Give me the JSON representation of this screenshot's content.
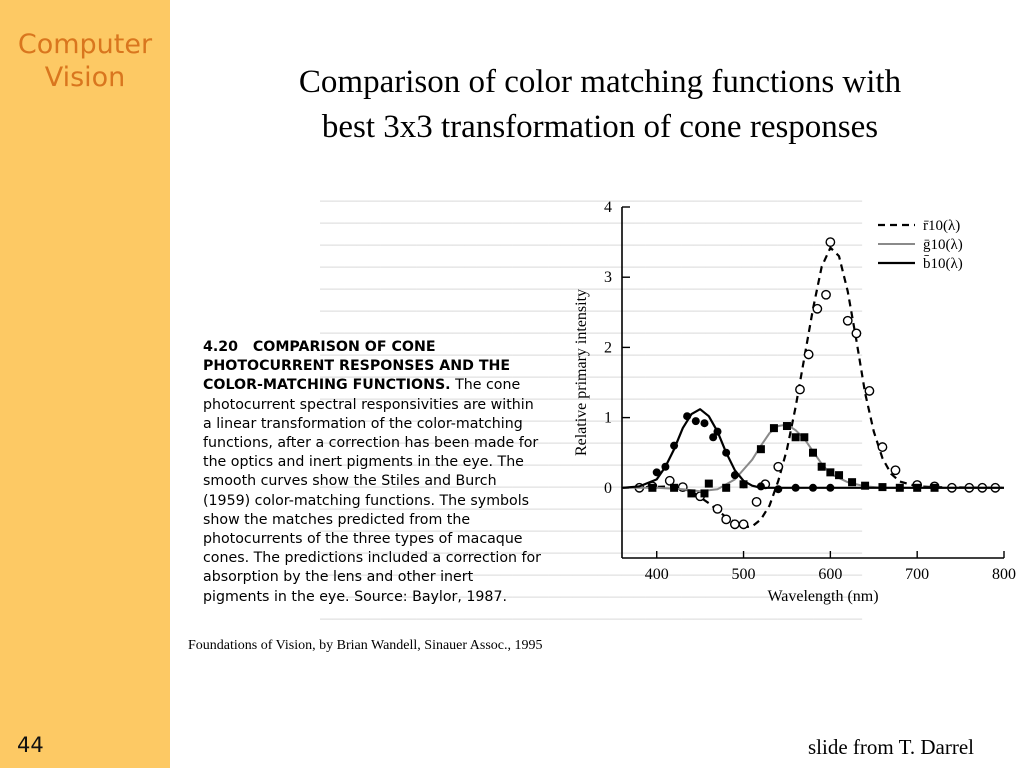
{
  "sidebar": {
    "title_line1": "Computer",
    "title_line2": "Vision",
    "slide_number": "44"
  },
  "slide": {
    "title_line1": "Comparison of color matching functions with",
    "title_line2": "best 3x3 transformation of cone responses",
    "credit": "Foundations of Vision, by Brian Wandell, Sinauer Assoc., 1995",
    "source": "slide from T. Darrel"
  },
  "caption": {
    "number": "4.20",
    "heading": "COMPARISON OF CONE PHOTOCURRENT RESPONSES AND THE COLOR-MATCHING FUNCTIONS.",
    "body": "The cone photocurrent spectral responsivities are within a linear transformation of the color-matching functions, after a correction has been made for the optics and inert pigments in the eye. The smooth curves show the Stiles and Burch (1959) color-matching functions. The symbols show the matches predicted from the photocurrents of the three types of macaque cones. The predictions included a correction for absorption by the lens and other inert pigments in the eye. Source: Baylor, 1987."
  },
  "colors": {
    "sidebar": "#fdc964",
    "sidebar_title": "#d9761e"
  },
  "chart_data": {
    "type": "line",
    "xlabel": "Wavelength (nm)",
    "ylabel": "Relative primary intensity",
    "xlim": [
      360,
      800
    ],
    "ylim": [
      -1,
      4
    ],
    "x_ticks": [
      "400",
      "500",
      "600",
      "700",
      "800"
    ],
    "y_ticks": [
      "0",
      "1",
      "2",
      "3",
      "4"
    ],
    "legend_position": "top-right",
    "series": [
      {
        "name": "r̄10(λ)",
        "style": "dashed",
        "marker": "open-circle",
        "curve": [
          [
            360,
            0
          ],
          [
            390,
            0.01
          ],
          [
            420,
            0.02
          ],
          [
            440,
            -0.05
          ],
          [
            460,
            -0.22
          ],
          [
            480,
            -0.42
          ],
          [
            500,
            -0.56
          ],
          [
            510,
            -0.55
          ],
          [
            520,
            -0.45
          ],
          [
            530,
            -0.25
          ],
          [
            540,
            0.1
          ],
          [
            550,
            0.55
          ],
          [
            560,
            1.15
          ],
          [
            570,
            1.85
          ],
          [
            580,
            2.55
          ],
          [
            590,
            3.15
          ],
          [
            600,
            3.42
          ],
          [
            610,
            3.3
          ],
          [
            620,
            2.8
          ],
          [
            630,
            2.1
          ],
          [
            640,
            1.35
          ],
          [
            650,
            0.8
          ],
          [
            660,
            0.42
          ],
          [
            670,
            0.2
          ],
          [
            680,
            0.09
          ],
          [
            700,
            0.02
          ],
          [
            720,
            0.01
          ],
          [
            800,
            0
          ]
        ],
        "points": [
          [
            380,
            0
          ],
          [
            395,
            0.02
          ],
          [
            415,
            0.1
          ],
          [
            430,
            0.01
          ],
          [
            450,
            -0.12
          ],
          [
            470,
            -0.3
          ],
          [
            480,
            -0.45
          ],
          [
            490,
            -0.52
          ],
          [
            500,
            -0.52
          ],
          [
            515,
            -0.2
          ],
          [
            525,
            0.05
          ],
          [
            540,
            0.3
          ],
          [
            565,
            1.4
          ],
          [
            575,
            1.9
          ],
          [
            585,
            2.55
          ],
          [
            595,
            2.75
          ],
          [
            600,
            3.5
          ],
          [
            620,
            2.38
          ],
          [
            630,
            2.2
          ],
          [
            645,
            1.38
          ],
          [
            660,
            0.58
          ],
          [
            675,
            0.25
          ],
          [
            700,
            0.04
          ],
          [
            720,
            0.02
          ],
          [
            740,
            0
          ],
          [
            760,
            0
          ],
          [
            775,
            0
          ],
          [
            790,
            0
          ]
        ]
      },
      {
        "name": "ḡ10(λ)",
        "style": "solid-gray",
        "marker": "filled-square",
        "curve": [
          [
            360,
            0
          ],
          [
            400,
            0
          ],
          [
            430,
            -0.02
          ],
          [
            450,
            -0.05
          ],
          [
            470,
            -0.02
          ],
          [
            490,
            0.12
          ],
          [
            510,
            0.4
          ],
          [
            520,
            0.6
          ],
          [
            530,
            0.78
          ],
          [
            540,
            0.88
          ],
          [
            550,
            0.9
          ],
          [
            560,
            0.82
          ],
          [
            570,
            0.7
          ],
          [
            580,
            0.52
          ],
          [
            590,
            0.34
          ],
          [
            600,
            0.2
          ],
          [
            620,
            0.08
          ],
          [
            640,
            0.02
          ],
          [
            660,
            0
          ],
          [
            800,
            0
          ]
        ],
        "points": [
          [
            395,
            0
          ],
          [
            420,
            0
          ],
          [
            440,
            -0.08
          ],
          [
            455,
            -0.08
          ],
          [
            460,
            0.06
          ],
          [
            480,
            0
          ],
          [
            500,
            0.05
          ],
          [
            520,
            0.55
          ],
          [
            535,
            0.85
          ],
          [
            550,
            0.88
          ],
          [
            560,
            0.72
          ],
          [
            570,
            0.72
          ],
          [
            580,
            0.5
          ],
          [
            590,
            0.3
          ],
          [
            600,
            0.22
          ],
          [
            610,
            0.18
          ],
          [
            625,
            0.08
          ],
          [
            640,
            0.03
          ],
          [
            660,
            0.01
          ],
          [
            680,
            0
          ],
          [
            700,
            0
          ],
          [
            720,
            0
          ]
        ]
      },
      {
        "name": "b̄10(λ)",
        "style": "solid",
        "marker": "filled-circle",
        "curve": [
          [
            360,
            0
          ],
          [
            380,
            0.02
          ],
          [
            400,
            0.12
          ],
          [
            410,
            0.3
          ],
          [
            420,
            0.55
          ],
          [
            430,
            0.85
          ],
          [
            440,
            1.05
          ],
          [
            450,
            1.12
          ],
          [
            460,
            1.02
          ],
          [
            470,
            0.8
          ],
          [
            480,
            0.5
          ],
          [
            490,
            0.25
          ],
          [
            500,
            0.1
          ],
          [
            510,
            0.03
          ],
          [
            520,
            0
          ],
          [
            800,
            0
          ]
        ],
        "points": [
          [
            400,
            0.22
          ],
          [
            410,
            0.3
          ],
          [
            420,
            0.6
          ],
          [
            435,
            1.02
          ],
          [
            445,
            0.95
          ],
          [
            455,
            0.92
          ],
          [
            465,
            0.72
          ],
          [
            470,
            0.8
          ],
          [
            480,
            0.5
          ],
          [
            490,
            0.18
          ],
          [
            500,
            0.05
          ],
          [
            520,
            0.02
          ],
          [
            540,
            -0.02
          ],
          [
            560,
            0
          ],
          [
            580,
            0
          ],
          [
            600,
            0
          ]
        ]
      }
    ]
  }
}
